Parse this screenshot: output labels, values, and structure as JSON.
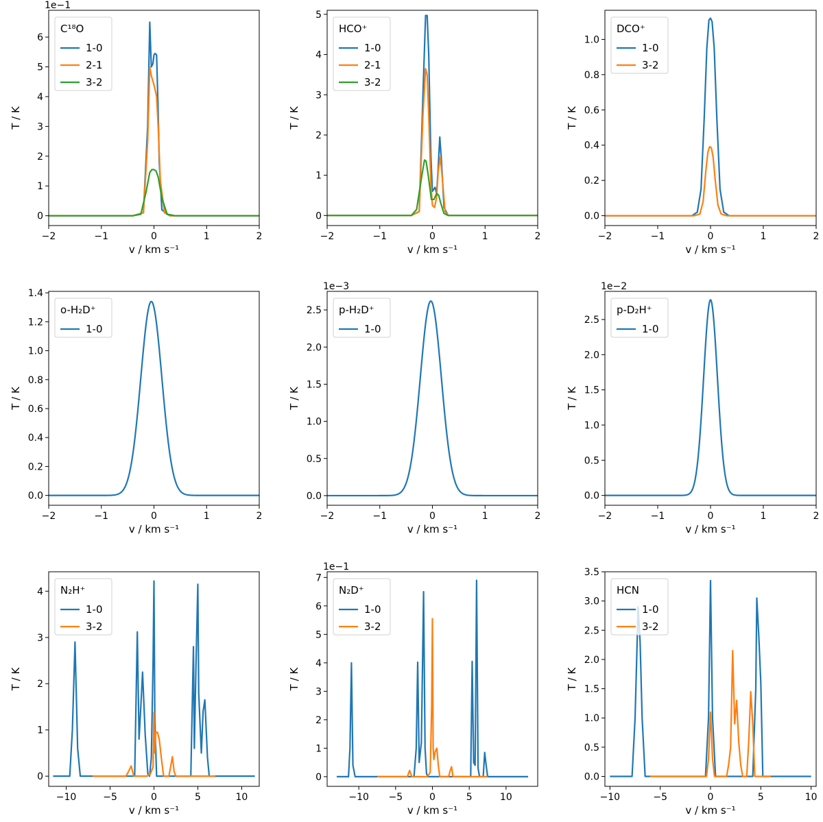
{
  "figure": {
    "colors": {
      "1-0": "#1f77b4",
      "2-1": "#ff7f0e",
      "3-2": "#2ca02c",
      "3-2-orange": "#ff7f0e"
    }
  },
  "chart_data": [
    {
      "type": "line",
      "id": "c18o",
      "legend_title": "C¹⁸O",
      "xlabel": "v / km s⁻¹",
      "ylabel": "T / K",
      "offset_text": "1e−1",
      "xlim": [
        -2,
        2
      ],
      "ylim": [
        -0.33,
        6.9
      ],
      "xticks": [
        -2,
        -1,
        0,
        1,
        2
      ],
      "xtick_labels": [
        "−2",
        "−1",
        "0",
        "1",
        "2"
      ],
      "yticks": [
        0,
        1,
        2,
        3,
        4,
        5,
        6
      ],
      "ytick_labels": [
        "0",
        "1",
        "2",
        "3",
        "4",
        "5",
        "6"
      ],
      "series": [
        {
          "name": "1-0",
          "color": "#1f77b4",
          "x": [
            -2,
            -0.4,
            -0.2,
            -0.12,
            -0.08,
            -0.05,
            -0.02,
            0.0,
            0.02,
            0.05,
            0.08,
            0.1,
            0.15,
            0.3,
            2
          ],
          "y": [
            0,
            0,
            0.1,
            3.0,
            6.5,
            5.0,
            5.1,
            5.4,
            5.45,
            5.4,
            3.5,
            1.8,
            0.2,
            0,
            0
          ]
        },
        {
          "name": "2-1",
          "color": "#ff7f0e",
          "x": [
            -2,
            -0.4,
            -0.2,
            -0.12,
            -0.08,
            -0.05,
            0.0,
            0.05,
            0.08,
            0.12,
            0.2,
            0.3,
            2
          ],
          "y": [
            0,
            0,
            0.1,
            2.5,
            5.0,
            4.7,
            4.4,
            4.0,
            3.0,
            1.2,
            0.1,
            0,
            0
          ]
        },
        {
          "name": "3-2",
          "color": "#2ca02c",
          "x": [
            -2,
            -0.4,
            -0.25,
            -0.15,
            -0.08,
            -0.04,
            0.0,
            0.04,
            0.08,
            0.15,
            0.25,
            0.4,
            2
          ],
          "y": [
            0,
            0,
            0.05,
            0.8,
            1.45,
            1.55,
            1.55,
            1.5,
            1.3,
            0.6,
            0.05,
            0,
            0
          ]
        }
      ]
    },
    {
      "type": "line",
      "id": "hco",
      "legend_title": "HCO⁺",
      "xlabel": "v / km s⁻¹",
      "ylabel": "T / K",
      "offset_text": "",
      "xlim": [
        -2,
        2
      ],
      "ylim": [
        -0.25,
        5.1
      ],
      "xticks": [
        -2,
        -1,
        0,
        1,
        2
      ],
      "xtick_labels": [
        "−2",
        "−1",
        "0",
        "1",
        "2"
      ],
      "yticks": [
        0,
        1,
        2,
        3,
        4,
        5
      ],
      "ytick_labels": [
        "0",
        "1",
        "2",
        "3",
        "4",
        "5"
      ],
      "series": [
        {
          "name": "1-0",
          "color": "#1f77b4",
          "x": [
            -2,
            -0.4,
            -0.25,
            -0.18,
            -0.13,
            -0.1,
            -0.07,
            -0.03,
            0.0,
            0.05,
            0.08,
            0.11,
            0.14,
            0.17,
            0.22,
            0.3,
            2
          ],
          "y": [
            0,
            0,
            0.1,
            3.0,
            4.97,
            4.97,
            4.0,
            1.5,
            0.6,
            0.7,
            0.55,
            1.2,
            1.95,
            1.4,
            0.2,
            0,
            0
          ]
        },
        {
          "name": "2-1",
          "color": "#ff7f0e",
          "x": [
            -2,
            -0.4,
            -0.25,
            -0.18,
            -0.13,
            -0.1,
            -0.07,
            -0.03,
            0.0,
            0.04,
            0.08,
            0.11,
            0.15,
            0.19,
            0.24,
            0.3,
            2
          ],
          "y": [
            0,
            0,
            0.1,
            2.5,
            3.65,
            3.5,
            2.5,
            0.8,
            0.25,
            0.2,
            0.45,
            1.1,
            1.45,
            0.9,
            0.1,
            0,
            0
          ]
        },
        {
          "name": "3-2",
          "color": "#2ca02c",
          "x": [
            -2,
            -0.4,
            -0.3,
            -0.2,
            -0.15,
            -0.12,
            -0.08,
            -0.02,
            0.03,
            0.08,
            0.12,
            0.16,
            0.22,
            0.3,
            2
          ],
          "y": [
            0,
            0,
            0.15,
            1.0,
            1.38,
            1.35,
            1.0,
            0.4,
            0.4,
            0.55,
            0.5,
            0.3,
            0.05,
            0,
            0
          ]
        }
      ]
    },
    {
      "type": "line",
      "id": "dco",
      "legend_title": "DCO⁺",
      "xlabel": "v / km s⁻¹",
      "ylabel": "T / K",
      "offset_text": "",
      "xlim": [
        -2,
        2
      ],
      "ylim": [
        -0.056,
        1.165
      ],
      "xticks": [
        -2,
        -1,
        0,
        1,
        2
      ],
      "xtick_labels": [
        "−2",
        "−1",
        "0",
        "1",
        "2"
      ],
      "yticks": [
        0,
        0.2,
        0.4,
        0.6,
        0.8,
        1.0
      ],
      "ytick_labels": [
        "0.0",
        "0.2",
        "0.4",
        "0.6",
        "0.8",
        "1.0"
      ],
      "series": [
        {
          "name": "1-0",
          "color": "#1f77b4",
          "x": [
            -2,
            -0.35,
            -0.25,
            -0.18,
            -0.12,
            -0.07,
            -0.03,
            0.0,
            0.03,
            0.07,
            0.12,
            0.18,
            0.25,
            0.35,
            2
          ],
          "y": [
            0,
            0,
            0.02,
            0.15,
            0.55,
            0.95,
            1.11,
            1.12,
            1.1,
            0.95,
            0.55,
            0.15,
            0.02,
            0,
            0
          ]
        },
        {
          "name": "3-2",
          "color": "#ff7f0e",
          "x": [
            -2,
            -0.3,
            -0.2,
            -0.14,
            -0.09,
            -0.05,
            -0.02,
            0.0,
            0.02,
            0.05,
            0.09,
            0.14,
            0.2,
            0.3,
            2
          ],
          "y": [
            0,
            0,
            0.01,
            0.08,
            0.25,
            0.36,
            0.39,
            0.39,
            0.38,
            0.33,
            0.2,
            0.06,
            0.01,
            0,
            0
          ]
        }
      ]
    },
    {
      "type": "line",
      "id": "oh2d",
      "legend_title": "o-H₂D⁺",
      "xlabel": "v / km s⁻¹",
      "ylabel": "T / K",
      "offset_text": "",
      "xlim": [
        -2,
        2
      ],
      "ylim": [
        -0.068,
        1.41
      ],
      "xticks": [
        -2,
        -1,
        0,
        1,
        2
      ],
      "xtick_labels": [
        "−2",
        "−1",
        "0",
        "1",
        "2"
      ],
      "yticks": [
        0,
        0.2,
        0.4,
        0.6,
        0.8,
        1.0,
        1.2,
        1.4
      ],
      "ytick_labels": [
        "0.0",
        "0.2",
        "0.4",
        "0.6",
        "0.8",
        "1.0",
        "1.2",
        "1.4"
      ],
      "gaussian": [
        {
          "name": "1-0",
          "color": "#1f77b4",
          "amp": 1.34,
          "mu": -0.05,
          "sigma": 0.2
        }
      ]
    },
    {
      "type": "line",
      "id": "ph2d",
      "legend_title": "p-H₂D⁺",
      "xlabel": "v / km s⁻¹",
      "ylabel": "T / K",
      "offset_text": "1e−3",
      "xlim": [
        -2,
        2
      ],
      "ylim": [
        -0.13,
        2.75
      ],
      "xticks": [
        -2,
        -1,
        0,
        1,
        2
      ],
      "xtick_labels": [
        "−2",
        "−1",
        "0",
        "1",
        "2"
      ],
      "yticks": [
        0,
        0.5,
        1.0,
        1.5,
        2.0,
        2.5
      ],
      "ytick_labels": [
        "0.0",
        "0.5",
        "1.0",
        "1.5",
        "2.0",
        "2.5"
      ],
      "gaussian": [
        {
          "name": "1-0",
          "color": "#1f77b4",
          "amp": 2.62,
          "mu": -0.03,
          "sigma": 0.2
        }
      ]
    },
    {
      "type": "line",
      "id": "pd2h",
      "legend_title": "p-D₂H⁺",
      "xlabel": "v / km s⁻¹",
      "ylabel": "T / K",
      "offset_text": "1e−2",
      "xlim": [
        -2,
        2
      ],
      "ylim": [
        -0.14,
        2.9
      ],
      "xticks": [
        -2,
        -1,
        0,
        1,
        2
      ],
      "xtick_labels": [
        "−2",
        "−1",
        "0",
        "1",
        "2"
      ],
      "yticks": [
        0,
        0.5,
        1.0,
        1.5,
        2.0,
        2.5
      ],
      "ytick_labels": [
        "0.0",
        "0.5",
        "1.0",
        "1.5",
        "2.0",
        "2.5"
      ],
      "gaussian": [
        {
          "name": "1-0",
          "color": "#1f77b4",
          "amp": 2.78,
          "mu": 0.0,
          "sigma": 0.13
        }
      ]
    },
    {
      "type": "line",
      "id": "n2h",
      "legend_title": "N₂H⁺",
      "xlabel": "v / km s⁻¹",
      "ylabel": "T / K",
      "offset_text": "",
      "xlim": [
        -12,
        12
      ],
      "ylim": [
        -0.22,
        4.42
      ],
      "xticks": [
        -10,
        -5,
        0,
        5,
        10
      ],
      "xtick_labels": [
        "−10",
        "−5",
        "0",
        "5",
        "10"
      ],
      "yticks": [
        0,
        1,
        2,
        3,
        4
      ],
      "ytick_labels": [
        "0",
        "1",
        "2",
        "3",
        "4"
      ],
      "series": [
        {
          "name": "1-0",
          "color": "#1f77b4",
          "x": [
            -11.5,
            -9.6,
            -9.3,
            -9.0,
            -8.7,
            -8.4,
            -2.2,
            -1.9,
            -1.7,
            -1.5,
            -1.3,
            -1.0,
            -0.7,
            -0.5,
            -0.3,
            -0.1,
            0.0,
            0.1,
            0.3,
            4.2,
            4.5,
            4.6,
            4.8,
            5.0,
            5.1,
            5.4,
            5.6,
            5.8,
            6.1,
            6.3,
            11.5
          ],
          "y": [
            0,
            0,
            1.0,
            2.9,
            0.6,
            0,
            0,
            3.12,
            0.8,
            1.5,
            2.25,
            0.9,
            0.05,
            0.0,
            0.4,
            2.5,
            4.22,
            1.2,
            0,
            0,
            2.8,
            0.6,
            2.5,
            4.15,
            1.8,
            0.5,
            1.4,
            1.65,
            0.4,
            0,
            0
          ]
        },
        {
          "name": "3-2",
          "color": "#ff7f0e",
          "x": [
            -7,
            -3.2,
            -2.9,
            -2.6,
            -2.3,
            -0.8,
            -0.4,
            -0.1,
            0.0,
            0.1,
            0.2,
            0.4,
            0.6,
            0.9,
            1.1,
            1.7,
            1.9,
            2.1,
            2.3,
            2.5,
            7
          ],
          "y": [
            0,
            0,
            0.1,
            0.22,
            0,
            0,
            0.05,
            0.2,
            1.38,
            0.5,
            0.95,
            0.95,
            0.8,
            0.3,
            0,
            0,
            0.2,
            0.42,
            0.1,
            0,
            0
          ]
        }
      ]
    },
    {
      "type": "line",
      "id": "n2d",
      "legend_title": "N₂D⁺",
      "xlabel": "v / km s⁻¹",
      "ylabel": "T / K",
      "offset_text": "1e−1",
      "xlim": [
        -14.3,
        14.3
      ],
      "ylim": [
        -0.34,
        7.2
      ],
      "xticks": [
        -10,
        -5,
        0,
        5,
        10
      ],
      "xtick_labels": [
        "−10",
        "−5",
        "0",
        "5",
        "10"
      ],
      "yticks": [
        0,
        1,
        2,
        3,
        4,
        5,
        6,
        7
      ],
      "ytick_labels": [
        "0",
        "1",
        "2",
        "3",
        "4",
        "5",
        "6",
        "7"
      ],
      "series": [
        {
          "name": "1-0",
          "color": "#1f77b4",
          "x": [
            -13,
            -11.4,
            -11.2,
            -11.0,
            -10.8,
            -10.5,
            -2.5,
            -2.2,
            -2.0,
            -1.8,
            -1.5,
            -1.2,
            -1.0,
            -0.8,
            -0.6,
            5.2,
            5.4,
            5.6,
            5.8,
            6.0,
            6.2,
            6.4,
            6.9,
            7.1,
            7.3,
            7.5,
            13
          ],
          "y": [
            0,
            0,
            1.0,
            4.0,
            0.4,
            0,
            0,
            1.0,
            4.02,
            0.5,
            1.2,
            6.5,
            1.0,
            0.1,
            0,
            0,
            4.05,
            0.5,
            0.4,
            6.9,
            0.3,
            0,
            0,
            0.85,
            0.4,
            0,
            0
          ]
        },
        {
          "name": "3-2",
          "color": "#ff7f0e",
          "x": [
            -7.5,
            -3.4,
            -3.1,
            -2.8,
            -0.7,
            -0.3,
            -0.1,
            0.0,
            0.1,
            0.2,
            0.4,
            0.6,
            0.8,
            1.0,
            2.2,
            2.4,
            2.6,
            2.8,
            7.5
          ],
          "y": [
            0,
            0,
            0.22,
            0,
            0,
            0.15,
            2.5,
            5.55,
            1.0,
            0.6,
            0.9,
            1.0,
            0.4,
            0,
            0,
            0.2,
            0.35,
            0,
            0
          ]
        }
      ]
    },
    {
      "type": "line",
      "id": "hcn",
      "legend_title": "HCN",
      "xlabel": "v / km s⁻¹",
      "ylabel": "T / K",
      "offset_text": "",
      "xlim": [
        -10.5,
        10.5
      ],
      "ylim": [
        -0.17,
        3.5
      ],
      "xticks": [
        -10,
        -5,
        0,
        5,
        10
      ],
      "xtick_labels": [
        "−10",
        "−5",
        "0",
        "5",
        "10"
      ],
      "yticks": [
        0,
        0.5,
        1.0,
        1.5,
        2.0,
        2.5,
        3.0,
        3.5
      ],
      "ytick_labels": [
        "0.0",
        "0.5",
        "1.0",
        "1.5",
        "2.0",
        "2.5",
        "3.0",
        "3.5"
      ],
      "series": [
        {
          "name": "1-0",
          "color": "#1f77b4",
          "x": [
            -10,
            -7.8,
            -7.5,
            -7.2,
            -7.0,
            -6.8,
            -6.5,
            -0.5,
            -0.2,
            0.0,
            0.2,
            0.5,
            4.2,
            4.5,
            4.6,
            4.8,
            5.0,
            5.2,
            10
          ],
          "y": [
            0,
            0,
            1.0,
            2.9,
            2.3,
            1.0,
            0,
            0,
            1.0,
            3.35,
            1.0,
            0,
            0,
            1.5,
            3.05,
            2.4,
            1.6,
            0,
            0
          ]
        },
        {
          "name": "3-2",
          "color": "#ff7f0e",
          "x": [
            -6,
            -0.4,
            -0.2,
            0.0,
            0.2,
            0.4,
            1.6,
            1.8,
            2.0,
            2.2,
            2.4,
            2.6,
            2.8,
            3.0,
            3.2,
            3.6,
            3.8,
            4.0,
            4.2,
            4.4,
            6
          ],
          "y": [
            0,
            0,
            0.3,
            1.1,
            0.3,
            0,
            0,
            0.2,
            0.5,
            2.15,
            0.9,
            1.3,
            0.6,
            0.2,
            0,
            0,
            0.6,
            1.45,
            0.9,
            0,
            0
          ]
        }
      ]
    }
  ]
}
